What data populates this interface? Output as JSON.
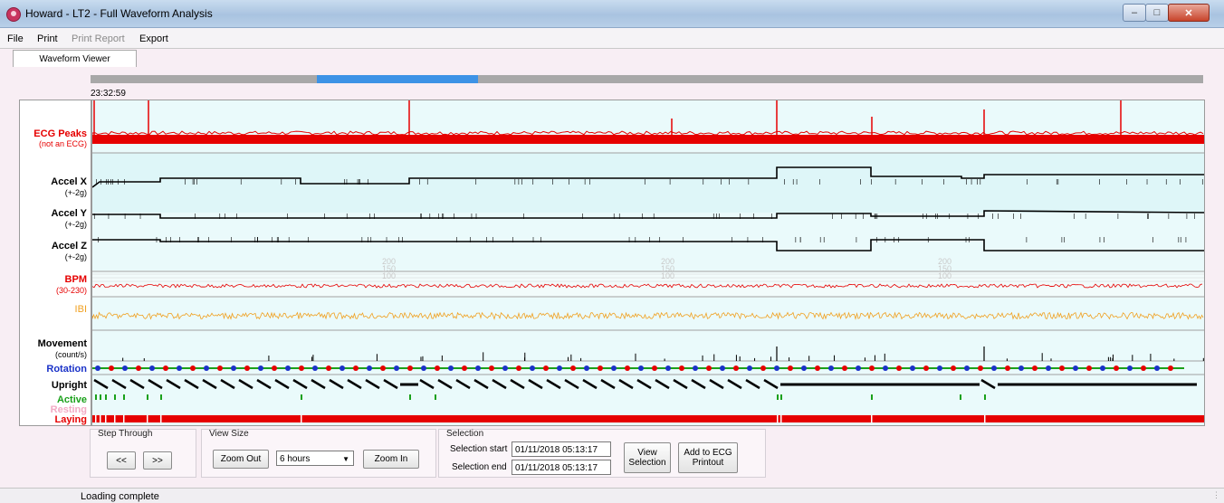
{
  "window": {
    "title": "Howard - LT2 - Full Waveform Analysis"
  },
  "menu": [
    "File",
    "Print",
    "Print Report",
    "Export"
  ],
  "tabs": {
    "active": "Waveform Viewer"
  },
  "range": {
    "start_time": "23:32:59"
  },
  "channels": [
    {
      "label": "ECG Peaks",
      "sub": "(not an ECG)",
      "color": "#e60000"
    },
    {
      "label": "Accel X",
      "sub": "(+-2g)",
      "color": "#000000"
    },
    {
      "label": "Accel Y",
      "sub": "(+-2g)",
      "color": "#000000"
    },
    {
      "label": "Accel Z",
      "sub": "(+-2g)",
      "color": "#000000"
    },
    {
      "label": "BPM",
      "sub": "(30-230)",
      "color": "#e60000"
    },
    {
      "label": "IBI",
      "sub": "",
      "color": "#f0a020"
    },
    {
      "label": "Movement",
      "sub": "(count/s)",
      "color": "#000000"
    },
    {
      "label": "Rotation",
      "sub": "",
      "color": "#1a32c8"
    },
    {
      "label": "Upright",
      "sub": "",
      "color": "#000000"
    },
    {
      "label": "Active",
      "sub": "",
      "color": "#1aa01a"
    },
    {
      "label": "Resting",
      "sub": "",
      "color": "#f2aac4"
    },
    {
      "label": "Laying",
      "sub": "",
      "color": "#e60000"
    }
  ],
  "bpm_scale": [
    "200",
    "150",
    "100"
  ],
  "step_through": {
    "title": "Step Through",
    "prev": "<<",
    "next": ">>"
  },
  "view_size": {
    "title": "View Size",
    "zoom_out": "Zoom Out",
    "selected": "6 hours",
    "zoom_in": "Zoom In"
  },
  "selection": {
    "title": "Selection",
    "start_label": "Selection start",
    "start_value": "01/11/2018 05:13:17",
    "end_label": "Selection end",
    "end_value": "01/11/2018 05:13:17",
    "view_button": "View Selection",
    "add_button": "Add to ECG Printout"
  },
  "status": "Loading complete"
}
